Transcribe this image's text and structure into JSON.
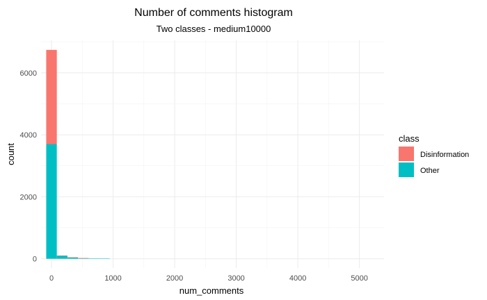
{
  "chart_data": {
    "type": "bar",
    "title": "Number of comments histogram",
    "subtitle": "Two classes - medium10000",
    "xlabel": "num_comments",
    "ylabel": "count",
    "xlim": [
      -170,
      5400
    ],
    "ylim": [
      -300,
      7050
    ],
    "x_ticks": [
      0,
      1000,
      2000,
      3000,
      4000,
      5000
    ],
    "y_ticks": [
      0,
      2000,
      4000,
      6000
    ],
    "bin_width": 172,
    "bins": [
      0,
      172,
      344,
      516,
      688,
      860
    ],
    "stacked": true,
    "grid": true,
    "legend": {
      "title": "class",
      "position": "right"
    },
    "series": [
      {
        "name": "Other",
        "color": "#00BFC4",
        "values": [
          3700,
          100,
          45,
          20,
          12,
          8
        ]
      },
      {
        "name": "Disinformation",
        "color": "#F8766D",
        "values": [
          3040,
          5,
          2,
          1,
          0,
          0
        ]
      }
    ]
  }
}
